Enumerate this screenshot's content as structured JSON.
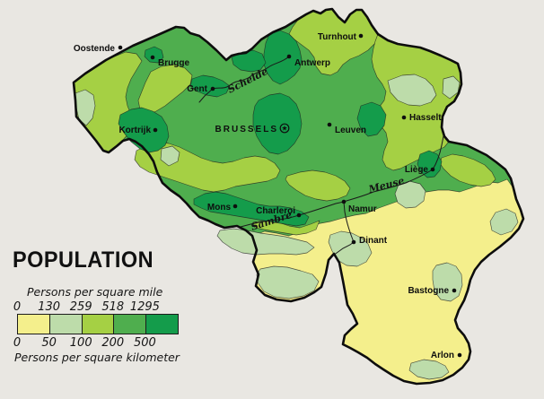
{
  "title": "POPULATION",
  "palette": {
    "background": "#e9e7e2",
    "outline": "#0d0d0d",
    "classes": [
      "#f4ef8c",
      "#bddcaa",
      "#a5d044",
      "#4fae4e",
      "#149c4b"
    ]
  },
  "legend": {
    "top_label": "Persons per square mile",
    "bottom_label": "Persons per square kilometer",
    "mile_ticks": [
      "0",
      "130",
      "259",
      "518",
      "1295"
    ],
    "km_ticks": [
      "0",
      "50",
      "100",
      "200",
      "500"
    ]
  },
  "cities": [
    {
      "name": "Oostende",
      "dot": [
        134,
        53
      ],
      "label": [
        128,
        57
      ],
      "anchor": "end"
    },
    {
      "name": "Brugge",
      "dot": [
        170,
        64
      ],
      "label": [
        176,
        73
      ],
      "anchor": "start"
    },
    {
      "name": "Gent",
      "dot": [
        237,
        99
      ],
      "label": [
        231,
        102
      ],
      "anchor": "end"
    },
    {
      "name": "Turnhout",
      "dot": [
        402,
        40
      ],
      "label": [
        397,
        44
      ],
      "anchor": "end"
    },
    {
      "name": "Antwerp",
      "dot": [
        322,
        63
      ],
      "label": [
        328,
        73
      ],
      "anchor": "start"
    },
    {
      "name": "Hasselt",
      "dot": [
        450,
        131
      ],
      "label": [
        456,
        134
      ],
      "anchor": "start"
    },
    {
      "name": "Kortrijk",
      "dot": [
        173,
        145
      ],
      "label": [
        168,
        148
      ],
      "anchor": "end"
    },
    {
      "name": "BRUSSELS",
      "dot": [
        317,
        143
      ],
      "label": [
        310,
        147
      ],
      "anchor": "end",
      "capital": true
    },
    {
      "name": "Leuven",
      "dot": [
        367,
        139
      ],
      "label": [
        373,
        148
      ],
      "anchor": "start"
    },
    {
      "name": "Liège",
      "dot": [
        482,
        189
      ],
      "label": [
        477,
        192
      ],
      "anchor": "end"
    },
    {
      "name": "Mons",
      "dot": [
        262,
        230
      ],
      "label": [
        257,
        234
      ],
      "anchor": "end"
    },
    {
      "name": "Charleroi",
      "dot": [
        333,
        240
      ],
      "label": [
        329,
        238
      ],
      "anchor": "end"
    },
    {
      "name": "Namur",
      "dot": [
        383,
        225
      ],
      "label": [
        388,
        236
      ],
      "anchor": "start"
    },
    {
      "name": "Dinant",
      "dot": [
        394,
        270
      ],
      "label": [
        400,
        271
      ],
      "anchor": "start"
    },
    {
      "name": "Bastogne",
      "dot": [
        506,
        324
      ],
      "label": [
        500,
        327
      ],
      "anchor": "end"
    },
    {
      "name": "Arlon",
      "dot": [
        512,
        396
      ],
      "label": [
        506,
        399
      ],
      "anchor": "end"
    }
  ],
  "rivers": [
    {
      "name": "Schelde",
      "label": [
        256,
        104
      ],
      "angle": -27
    },
    {
      "name": "Sambre",
      "label": [
        281,
        257
      ],
      "angle": -18
    },
    {
      "name": "Meuse",
      "label": [
        412,
        215
      ],
      "angle": -15
    }
  ]
}
